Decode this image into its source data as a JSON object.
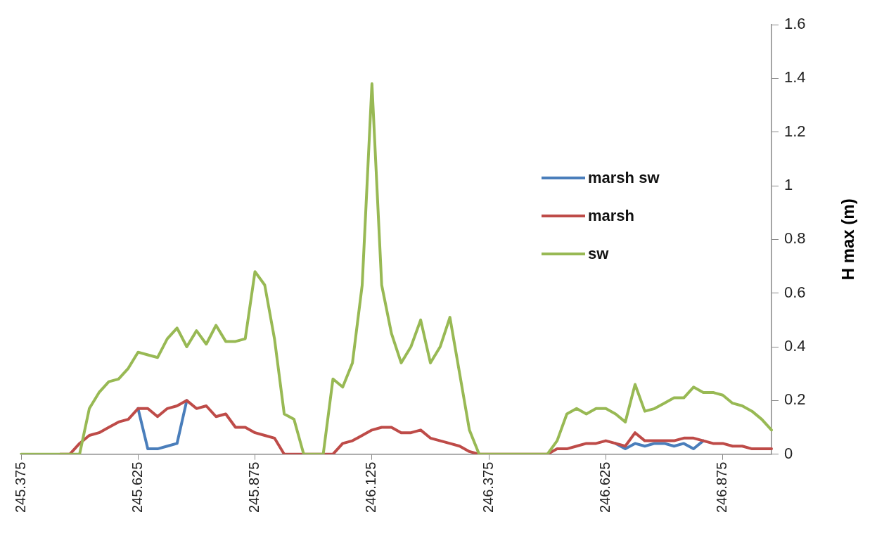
{
  "chart_data": {
    "type": "line",
    "ylabel": "H max (m)",
    "categories": [
      "245.375",
      null,
      null,
      null,
      null,
      null,
      null,
      null,
      null,
      null,
      null,
      null,
      "245.625",
      null,
      null,
      null,
      null,
      null,
      null,
      null,
      null,
      null,
      null,
      null,
      "245.875",
      null,
      null,
      null,
      null,
      null,
      null,
      null,
      null,
      null,
      null,
      null,
      "246.125",
      null,
      null,
      null,
      null,
      null,
      null,
      null,
      null,
      null,
      null,
      null,
      "246.375",
      null,
      null,
      null,
      null,
      null,
      null,
      null,
      null,
      null,
      null,
      null,
      "246.625",
      null,
      null,
      null,
      null,
      null,
      null,
      null,
      null,
      null,
      null,
      null,
      "246.875",
      null,
      null,
      null,
      null,
      null
    ],
    "series": [
      {
        "name": "marsh sw",
        "color": "#4a7ebb",
        "values": [
          null,
          null,
          null,
          null,
          null,
          null,
          null,
          null,
          null,
          null,
          null,
          null,
          0.17,
          0.02,
          0.02,
          0.03,
          0.04,
          0.2,
          null,
          null,
          null,
          null,
          null,
          null,
          null,
          null,
          null,
          null,
          null,
          null,
          null,
          null,
          null,
          null,
          null,
          null,
          null,
          null,
          null,
          null,
          null,
          null,
          null,
          null,
          null,
          null,
          null,
          null,
          null,
          null,
          null,
          null,
          null,
          null,
          null,
          null,
          null,
          null,
          null,
          null,
          null,
          0.04,
          0.02,
          0.04,
          0.03,
          0.04,
          0.04,
          0.03,
          0.04,
          0.02,
          0.05,
          null,
          null,
          null,
          null,
          null,
          null,
          null
        ]
      },
      {
        "name": "marsh",
        "color": "#be4b48",
        "values": [
          null,
          null,
          null,
          null,
          0,
          0,
          0.04,
          0.07,
          0.08,
          0.1,
          0.12,
          0.13,
          0.17,
          0.17,
          0.14,
          0.17,
          0.18,
          0.2,
          0.17,
          0.18,
          0.14,
          0.15,
          0.1,
          0.1,
          0.08,
          0.07,
          0.06,
          0,
          0,
          0,
          0,
          0,
          0,
          0.04,
          0.05,
          0.07,
          0.09,
          0.1,
          0.1,
          0.08,
          0.08,
          0.09,
          0.06,
          0.05,
          0.04,
          0.03,
          0.01,
          0,
          0,
          0,
          0,
          0,
          0,
          0,
          0,
          0.02,
          0.02,
          0.03,
          0.04,
          0.04,
          0.05,
          0.04,
          0.03,
          0.08,
          0.05,
          0.05,
          0.05,
          0.05,
          0.06,
          0.06,
          0.05,
          0.04,
          0.04,
          0.03,
          0.03,
          0.02,
          0.02,
          0.02
        ]
      },
      {
        "name": "sw",
        "color": "#98b954",
        "values": [
          0,
          0,
          0,
          0,
          0,
          0,
          0,
          0.17,
          0.23,
          0.27,
          0.28,
          0.32,
          0.38,
          0.37,
          0.36,
          0.43,
          0.47,
          0.4,
          0.46,
          0.41,
          0.48,
          0.42,
          0.42,
          0.43,
          0.68,
          0.63,
          0.43,
          0.15,
          0.13,
          0,
          0,
          0,
          0.28,
          0.25,
          0.34,
          0.63,
          1.38,
          0.63,
          0.45,
          0.34,
          0.4,
          0.5,
          0.34,
          0.4,
          0.51,
          0.3,
          0.09,
          0,
          0,
          0,
          0,
          0,
          0,
          0,
          0,
          0.05,
          0.15,
          0.17,
          0.15,
          0.17,
          0.17,
          0.15,
          0.12,
          0.26,
          0.16,
          0.17,
          0.19,
          0.21,
          0.21,
          0.25,
          0.23,
          0.23,
          0.22,
          0.19,
          0.18,
          0.16,
          0.13,
          0.09
        ]
      }
    ],
    "ylim": [
      0,
      1.6
    ],
    "yticks": [
      0,
      0.2,
      0.4,
      0.6,
      0.8,
      1,
      1.2,
      1.4,
      1.6
    ],
    "grid": false,
    "legend": "right",
    "marker": "none",
    "line_style": "solid"
  }
}
